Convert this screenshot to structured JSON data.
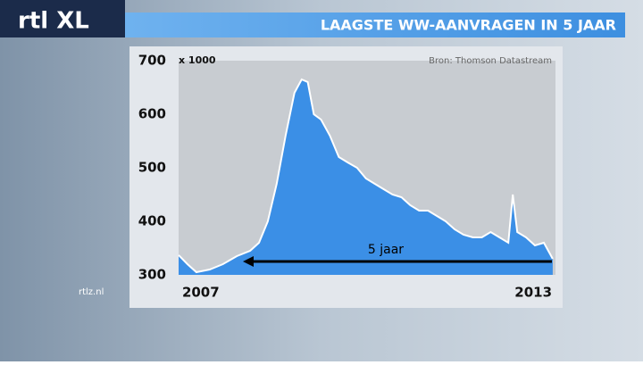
{
  "chart_data": {
    "type": "area",
    "title": "LAAGSTE WW-AANVRAGEN IN 5 JAAR",
    "unit_label": "x 1000",
    "source": "Bron: Thomson Datastream",
    "annotation": "5 jaar",
    "logo": "rtl XL",
    "website": "rtlz.nl",
    "x": [
      2006.6,
      2006.76,
      2006.92,
      2007.16,
      2007.4,
      2007.65,
      2007.89,
      2008.05,
      2008.21,
      2008.37,
      2008.53,
      2008.69,
      2008.82,
      2008.93,
      2009.04,
      2009.17,
      2009.33,
      2009.49,
      2009.65,
      2009.82,
      2009.98,
      2010.14,
      2010.3,
      2010.46,
      2010.62,
      2010.78,
      2010.94,
      2011.1,
      2011.26,
      2011.42,
      2011.58,
      2011.74,
      2011.91,
      2012.07,
      2012.23,
      2012.39,
      2012.55,
      2012.63,
      2012.71,
      2012.87,
      2013.03,
      2013.19,
      2013.35
    ],
    "values": [
      337,
      320,
      305,
      310,
      320,
      335,
      345,
      360,
      400,
      470,
      560,
      640,
      665,
      660,
      600,
      590,
      560,
      520,
      510,
      500,
      480,
      470,
      460,
      450,
      445,
      430,
      420,
      420,
      410,
      400,
      385,
      375,
      370,
      370,
      380,
      370,
      360,
      450,
      380,
      370,
      355,
      360,
      330
    ],
    "color": "#3b8fe6",
    "line_color": "#ffffff",
    "xlim": [
      2006.6,
      2013.4
    ],
    "xticks": [
      2007,
      2013
    ],
    "ylim": [
      300,
      700
    ],
    "yticks": [
      300,
      400,
      500,
      600,
      700
    ],
    "grid": false
  }
}
